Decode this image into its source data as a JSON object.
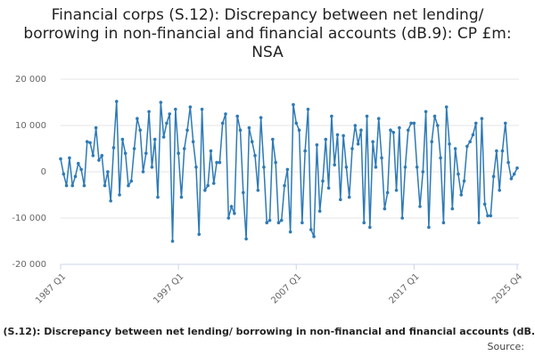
{
  "chart_data": {
    "type": "line",
    "title": "Financial corps (S.12): Discrepancy between net lending/ borrowing in non-financial and financial accounts (dB.9): CP £m: NSA",
    "source": "Source:",
    "categories": [
      "1987 Q1",
      null,
      null,
      null,
      null,
      null,
      null,
      null,
      null,
      null,
      null,
      null,
      null,
      null,
      null,
      null,
      null,
      null,
      null,
      null,
      null,
      null,
      null,
      null,
      null,
      null,
      null,
      null,
      null,
      null,
      null,
      null,
      null,
      null,
      null,
      null,
      null,
      null,
      null,
      null,
      "1997 Q1",
      null,
      null,
      null,
      null,
      null,
      null,
      null,
      null,
      null,
      null,
      null,
      null,
      null,
      null,
      null,
      null,
      null,
      null,
      null,
      null,
      null,
      null,
      null,
      null,
      null,
      null,
      null,
      null,
      null,
      null,
      null,
      null,
      null,
      null,
      null,
      null,
      null,
      null,
      null,
      "2007 Q1",
      null,
      null,
      null,
      null,
      null,
      null,
      null,
      null,
      null,
      null,
      null,
      null,
      null,
      null,
      null,
      null,
      null,
      null,
      null,
      null,
      null,
      null,
      null,
      null,
      null,
      null,
      null,
      null,
      null,
      null,
      null,
      null,
      null,
      null,
      null,
      null,
      null,
      null,
      null,
      "2017 Q1",
      null,
      null,
      null,
      null,
      null,
      null,
      null,
      null,
      null,
      null,
      null,
      null,
      null,
      null,
      null,
      null,
      null,
      null,
      null,
      null,
      null,
      null,
      null,
      null,
      null,
      null,
      null,
      null,
      null,
      null,
      null,
      null,
      null,
      null,
      "2025 Q4"
    ],
    "series": [
      {
        "name": "Financial corps (S.12): Discrepancy between net lending/ borrowing in non-financial and financial accounts (dB.9): CP £m: NSA",
        "color": "#2e7ab6",
        "values": [
          2800,
          -500,
          -3000,
          3000,
          -3000,
          -1000,
          1800,
          500,
          -3000,
          6500,
          6300,
          3500,
          9500,
          2500,
          3500,
          -3000,
          0,
          -6300,
          5200,
          15200,
          -5000,
          7000,
          4000,
          -3000,
          -2000,
          5000,
          11500,
          9000,
          0,
          4000,
          13000,
          1000,
          7000,
          -5500,
          15000,
          7500,
          10500,
          12500,
          -15000,
          13500,
          4000,
          -5500,
          5000,
          9000,
          14000,
          6500,
          1000,
          -13500,
          13500,
          -4000,
          -3000,
          4500,
          -2500,
          2000,
          2000,
          10500,
          12500,
          -10000,
          -7500,
          -9000,
          12000,
          9000,
          -4500,
          -14500,
          9500,
          6500,
          3500,
          -4000,
          11700,
          1000,
          -11000,
          -10500,
          7000,
          2000,
          -11000,
          -10500,
          -3000,
          500,
          -13000,
          14500,
          10500,
          9000,
          -11000,
          4500,
          13500,
          -12500,
          -14000,
          5800,
          -8500,
          -2000,
          7000,
          -3500,
          12000,
          1500,
          8000,
          -6000,
          7800,
          1000,
          -5500,
          5000,
          10000,
          6000,
          9000,
          -11000,
          12000,
          -12000,
          6500,
          1000,
          11500,
          3000,
          -8000,
          -4500,
          9000,
          8500,
          -4000,
          9500,
          -10000,
          1000,
          9000,
          10500,
          10500,
          1000,
          -7500,
          0,
          13000,
          -12000,
          6500,
          12000,
          10000,
          3000,
          -11000,
          14000,
          6000,
          -8000,
          5000,
          -500,
          -5000,
          -2000,
          5500,
          6500,
          8000,
          10500,
          -11000,
          11500,
          -7000,
          -9500,
          -9500,
          -1000,
          4500,
          -4000,
          4500,
          10500,
          2000,
          -1500,
          -500,
          800
        ]
      }
    ],
    "ylim": [
      -20000,
      20000
    ],
    "yticks": [
      {
        "value": -20000,
        "label": "-20 000"
      },
      {
        "value": -10000,
        "label": "-10 000"
      },
      0,
      {
        "value": 10000,
        "label": "10 000"
      },
      {
        "value": 20000,
        "label": "20 000"
      }
    ],
    "grid": true
  }
}
